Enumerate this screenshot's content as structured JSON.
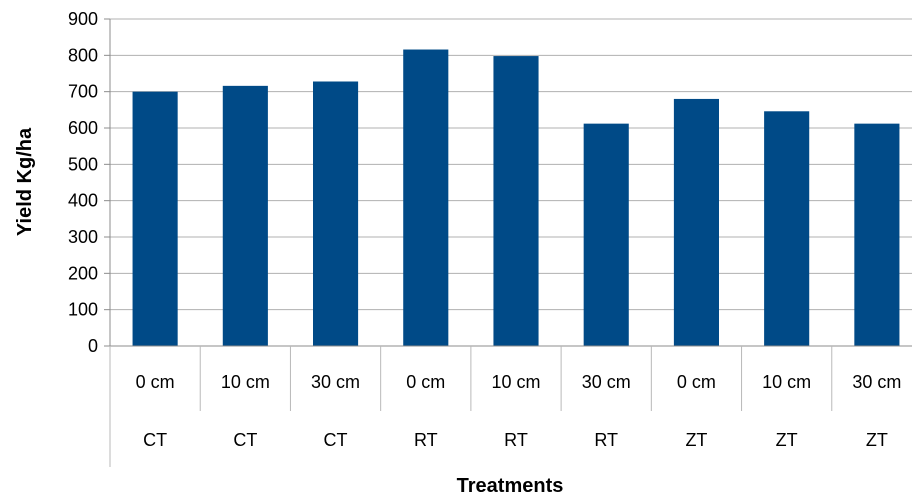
{
  "chart_data": {
    "type": "bar",
    "title": "",
    "xlabel": "Treatments",
    "ylabel": "Yield Kg/ha",
    "ylim": [
      0,
      900
    ],
    "yticks": [
      "0",
      "100",
      "200",
      "300",
      "400",
      "500",
      "600",
      "700",
      "800",
      "900"
    ],
    "categories": [
      {
        "depth": "0 cm",
        "tillage": "CT"
      },
      {
        "depth": "10 cm",
        "tillage": "CT"
      },
      {
        "depth": "30 cm",
        "tillage": "CT"
      },
      {
        "depth": "0 cm",
        "tillage": "RT"
      },
      {
        "depth": "10 cm",
        "tillage": "RT"
      },
      {
        "depth": "30 cm",
        "tillage": "RT"
      },
      {
        "depth": "0 cm",
        "tillage": "ZT"
      },
      {
        "depth": "10 cm",
        "tillage": "ZT"
      },
      {
        "depth": "30 cm",
        "tillage": "ZT"
      }
    ],
    "values": [
      700,
      716,
      728,
      816,
      798,
      612,
      680,
      646,
      612
    ],
    "bar_color": "#004a87",
    "grid": true,
    "legend": "none"
  }
}
